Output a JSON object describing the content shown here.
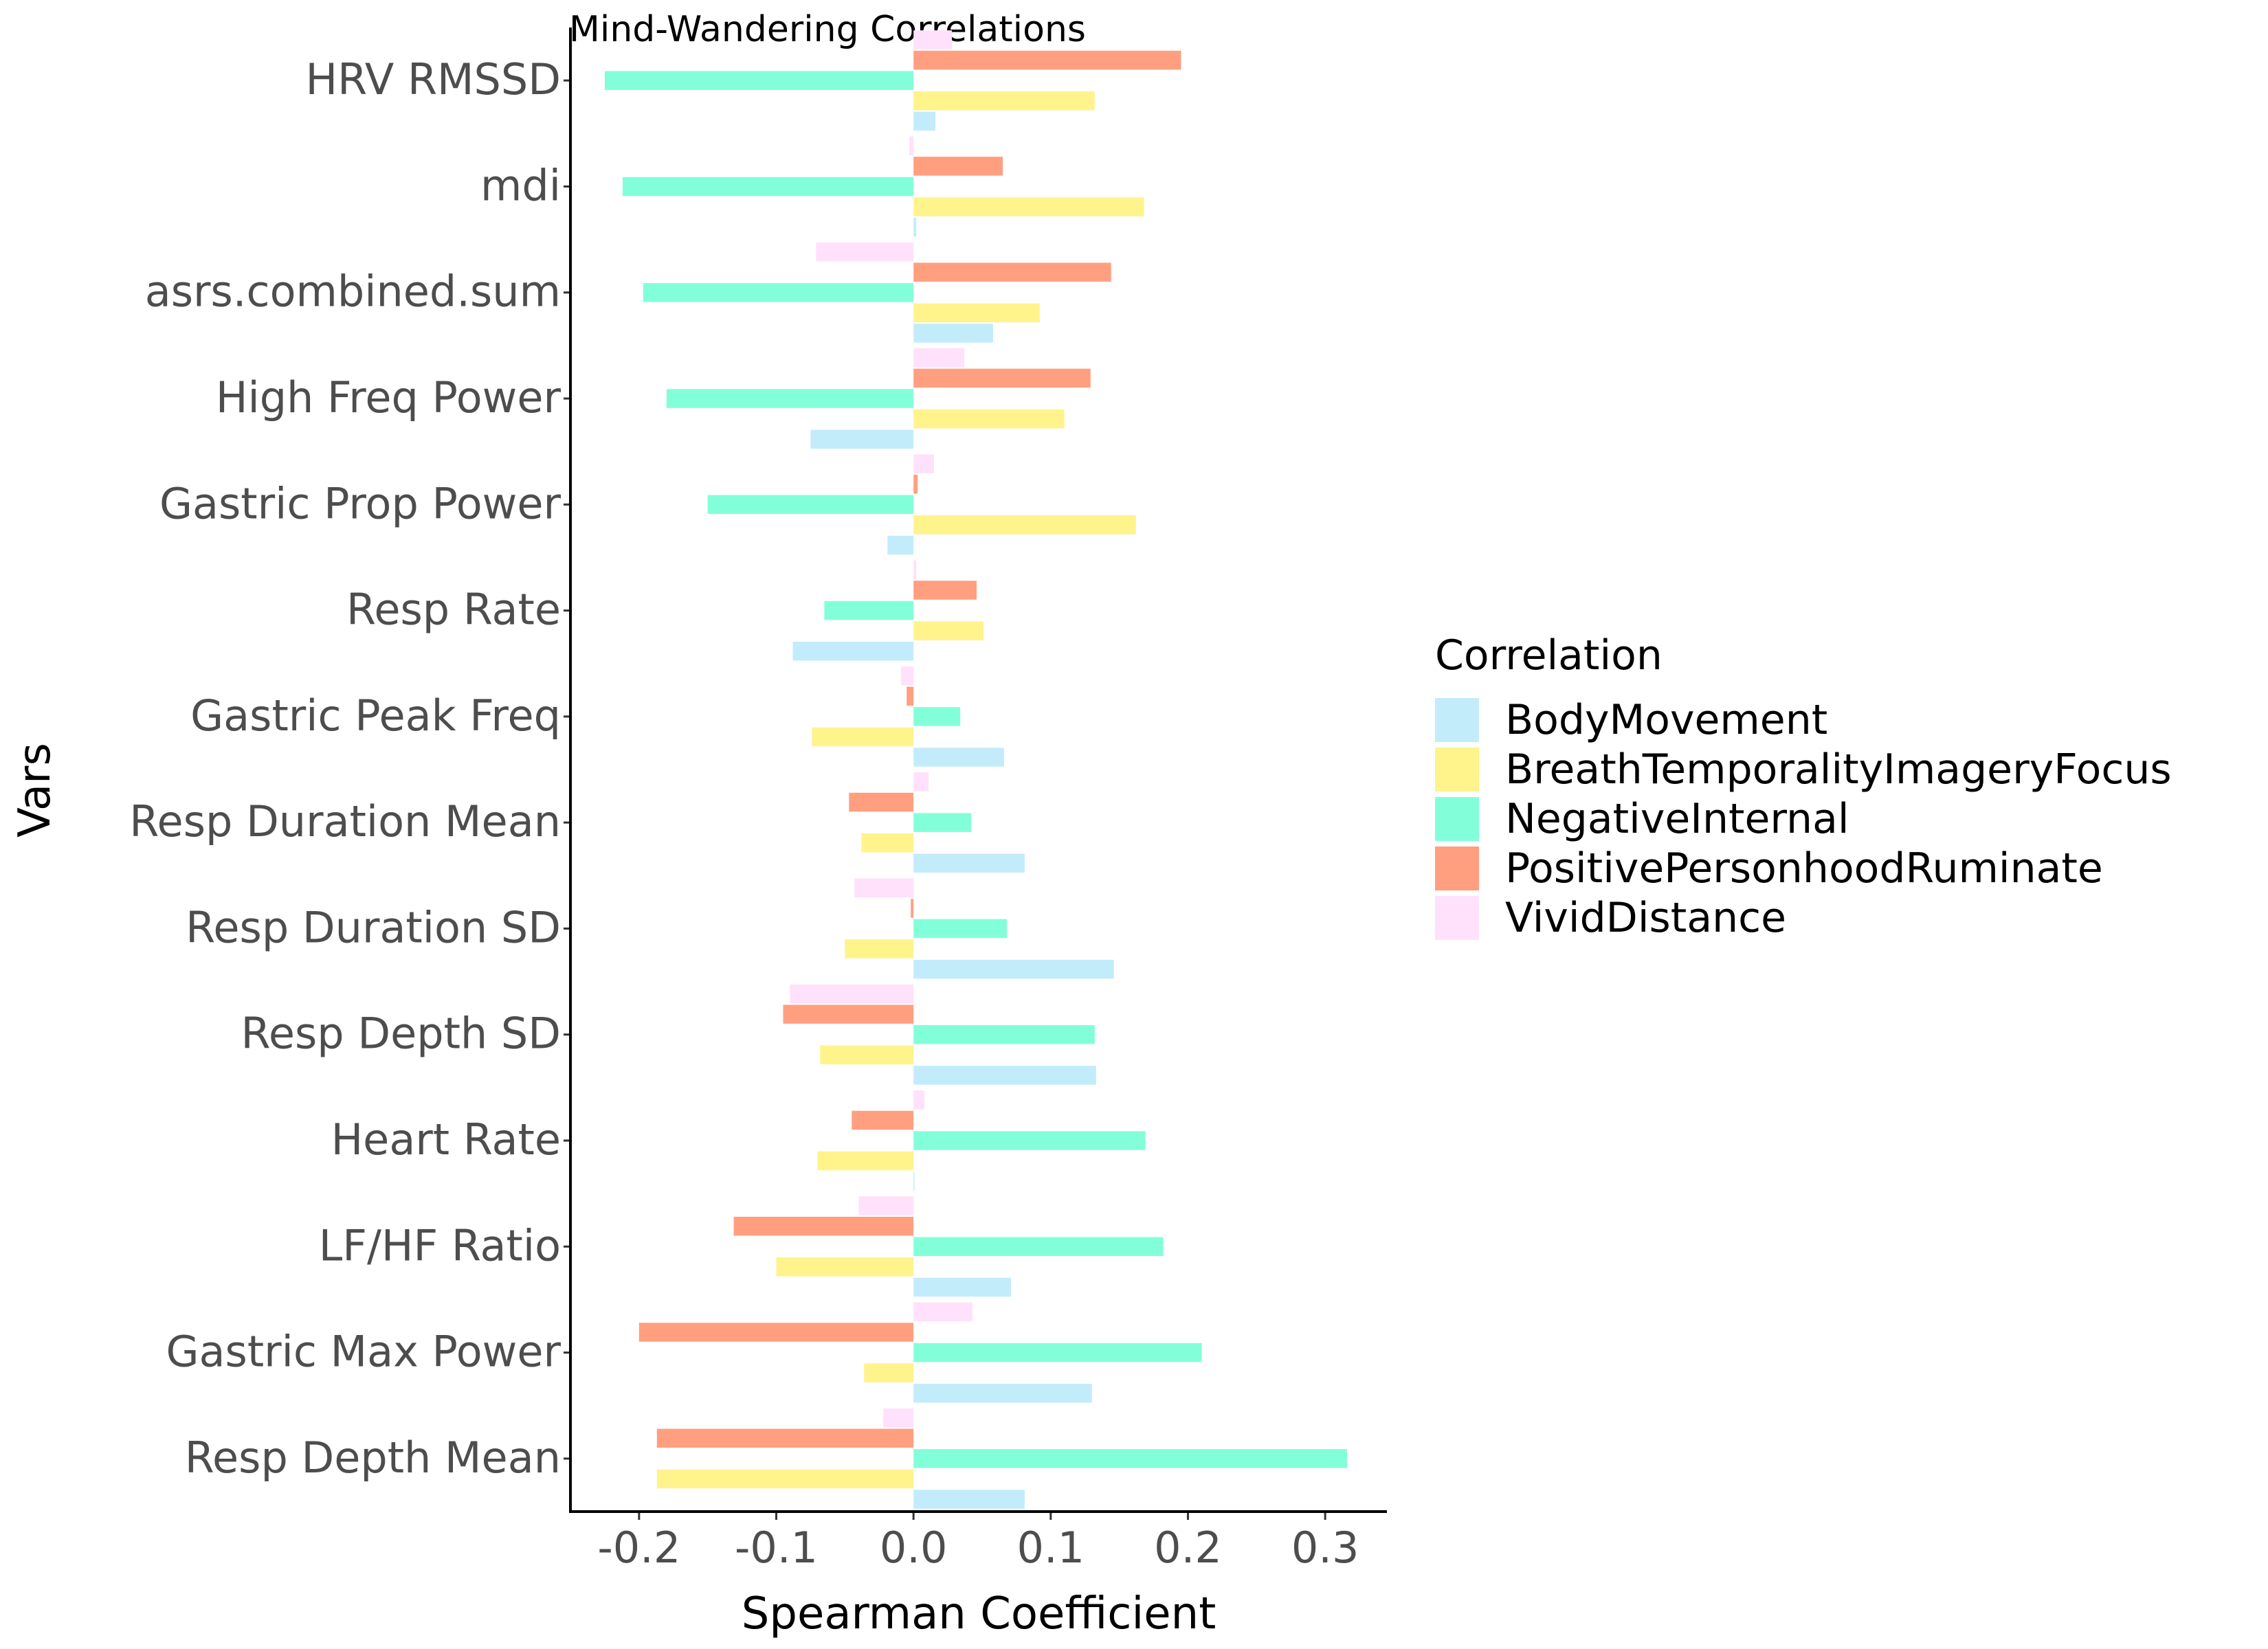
{
  "chart_data": {
    "type": "bar",
    "orientation": "horizontal",
    "title": "Mind-Wandering Correlations",
    "xlabel": "Spearman Coefficient",
    "ylabel": "Vars",
    "xlim": [
      -0.25,
      0.345
    ],
    "xticks": [
      -0.2,
      -0.1,
      0.0,
      0.1,
      0.2,
      0.3
    ],
    "xtick_labels": [
      "-0.2",
      "-0.1",
      "0.0",
      "0.1",
      "0.2",
      "0.3"
    ],
    "grid": false,
    "legend": {
      "title": "Correlation",
      "position": "right"
    },
    "categories": [
      "HRV RMSSD",
      "mdi",
      "asrs.combined.sum",
      "High Freq Power",
      "Gastric Prop Power",
      "Resp Rate",
      "Gastric Peak Freq",
      "Resp Duration Mean",
      "Resp Duration SD",
      "Resp Depth SD",
      "Heart Rate",
      "LF/HF Ratio",
      "Gastric Max Power",
      "Resp Depth Mean"
    ],
    "series": [
      {
        "name": "BodyMovement",
        "color": "#c3ecfb",
        "values": [
          0.016,
          0.002,
          0.058,
          -0.075,
          -0.019,
          -0.088,
          0.066,
          0.081,
          0.146,
          0.133,
          0.0,
          0.071,
          0.13,
          0.081
        ]
      },
      {
        "name": "BreathTemporalityImageryFocus",
        "color": "#fff38c",
        "values": [
          0.132,
          0.168,
          0.092,
          0.11,
          0.162,
          0.051,
          -0.074,
          -0.038,
          -0.05,
          -0.068,
          -0.07,
          -0.1,
          -0.036,
          -0.187
        ]
      },
      {
        "name": "NegativeInternal",
        "color": "#82ffd9",
        "values": [
          -0.225,
          -0.212,
          -0.197,
          -0.18,
          -0.15,
          -0.065,
          0.034,
          0.042,
          0.068,
          0.132,
          0.169,
          0.182,
          0.21,
          0.316
        ]
      },
      {
        "name": "PositivePersonhoodRuminate",
        "color": "#ff9f7f",
        "values": [
          0.195,
          0.065,
          0.144,
          0.129,
          0.003,
          0.046,
          -0.005,
          -0.047,
          -0.002,
          -0.095,
          -0.045,
          -0.131,
          -0.2,
          -0.187
        ]
      },
      {
        "name": "VividDistance",
        "color": "#ffe1fb",
        "values": [
          0.028,
          -0.003,
          -0.071,
          0.037,
          0.015,
          0.002,
          -0.009,
          0.011,
          -0.043,
          -0.09,
          0.008,
          -0.04,
          0.043,
          -0.022
        ]
      }
    ]
  }
}
